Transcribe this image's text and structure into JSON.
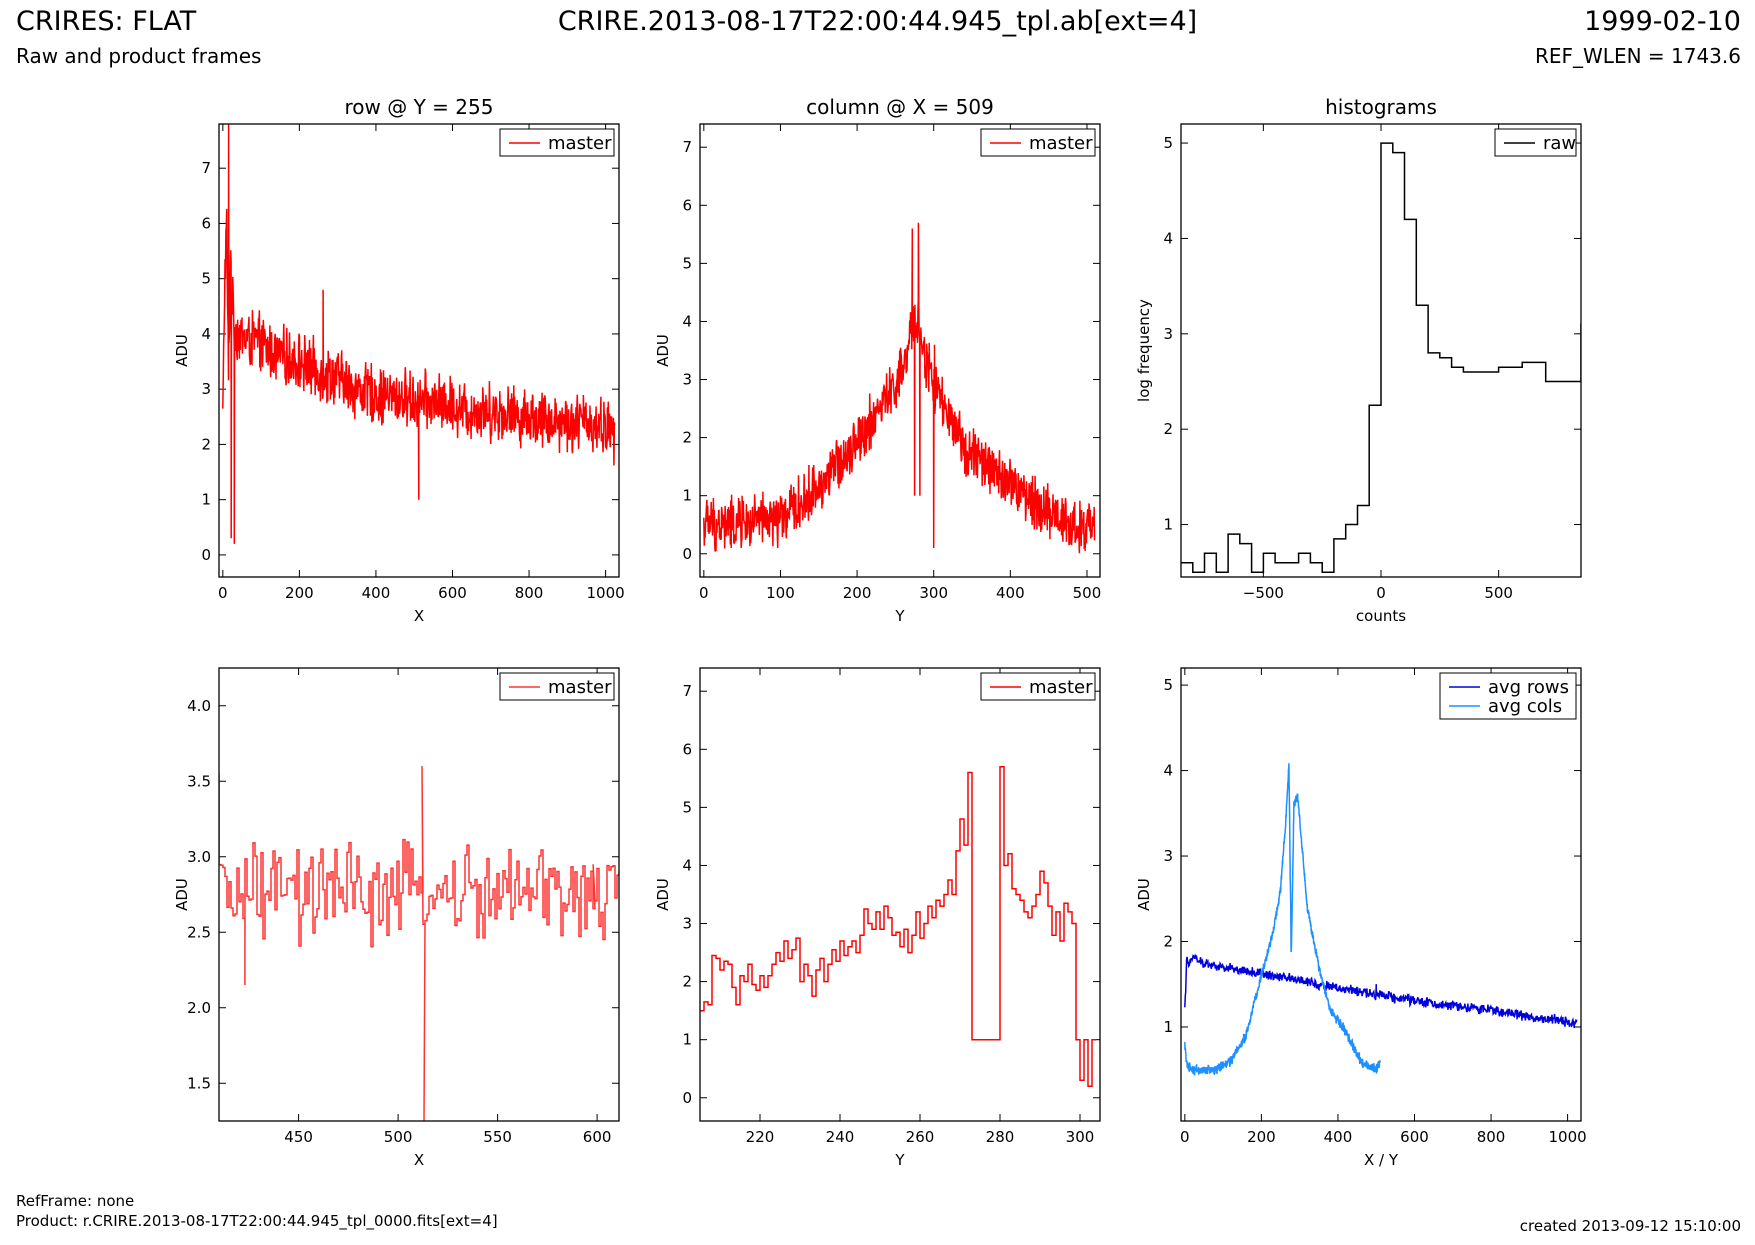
{
  "header": {
    "title": "CRIRES: FLAT",
    "subtitle": "Raw and product frames",
    "file": "CRIRE.2013-08-17T22:00:44.945_tpl.ab[ext=4]",
    "date": "1999-02-10",
    "ref_wlen": "REF_WLEN = 1743.6"
  },
  "footer": {
    "ref_frame": "RefFrame: none",
    "product": "Product: r.CRIRE.2013-08-17T22:00:44.945_tpl_0000.fits[ext=4]",
    "created": "created 2013-09-12 15:10:00"
  },
  "colors": {
    "master": "#ff0000",
    "master_zoom": "#ff3333",
    "raw": "#000000",
    "avg_rows": "#0000dd",
    "avg_cols": "#1e90ff"
  },
  "chart_data": [
    {
      "id": "row",
      "type": "line",
      "title": "row @ Y = 255",
      "xlabel": "X",
      "ylabel": "ADU",
      "xlim": [
        -10,
        1035
      ],
      "ylim": [
        -0.4,
        7.8
      ],
      "xticks": [
        0,
        200,
        400,
        600,
        800,
        1000
      ],
      "yticks": [
        0,
        1,
        2,
        3,
        4,
        5,
        6,
        7
      ],
      "legend": "top-right",
      "series": [
        {
          "name": "master",
          "style": "noisy",
          "x": [
            0,
            5,
            10,
            15,
            20,
            25,
            30,
            40,
            60,
            80,
            100,
            150,
            200,
            250,
            300,
            350,
            400,
            450,
            500,
            550,
            600,
            650,
            700,
            750,
            800,
            850,
            900,
            950,
            1000,
            1024
          ],
          "values": [
            2.5,
            5.0,
            6.0,
            3.0,
            5.5,
            4.5,
            4.2,
            4.0,
            3.9,
            3.9,
            3.8,
            3.6,
            3.5,
            3.3,
            3.2,
            3.0,
            2.9,
            2.85,
            2.8,
            2.75,
            2.7,
            2.6,
            2.6,
            2.55,
            2.5,
            2.45,
            2.4,
            2.4,
            2.3,
            2.2
          ],
          "noise": 0.45,
          "spikes": [
            [
              15,
              7.8
            ],
            [
              22,
              0.3
            ],
            [
              30,
              0.2
            ],
            [
              512,
              1.0
            ],
            [
              262,
              4.8
            ]
          ]
        }
      ]
    },
    {
      "id": "column",
      "type": "line",
      "title": "column @ X = 509",
      "xlabel": "Y",
      "ylabel": "ADU",
      "xlim": [
        -5,
        517
      ],
      "ylim": [
        -0.4,
        7.4
      ],
      "xticks": [
        0,
        100,
        200,
        300,
        400,
        500
      ],
      "yticks": [
        0,
        1,
        2,
        3,
        4,
        5,
        6,
        7
      ],
      "legend": "top-right",
      "series": [
        {
          "name": "master",
          "style": "noisy",
          "x": [
            0,
            50,
            100,
            130,
            160,
            190,
            220,
            250,
            265,
            272,
            280,
            290,
            310,
            330,
            360,
            400,
            440,
            480,
            510
          ],
          "values": [
            0.5,
            0.5,
            0.6,
            0.9,
            1.3,
            1.8,
            2.3,
            2.9,
            3.3,
            4.0,
            4.0,
            3.3,
            2.6,
            2.0,
            1.6,
            1.2,
            0.8,
            0.5,
            0.4
          ],
          "noise": 0.4,
          "spikes": [
            [
              272,
              5.6
            ],
            [
              275,
              1.0
            ],
            [
              280,
              5.7
            ],
            [
              282,
              1.0
            ],
            [
              300,
              0.1
            ],
            [
              301,
              3.6
            ],
            [
              50,
              1.0
            ],
            [
              100,
              1.0
            ],
            [
              120,
              1.0
            ]
          ]
        }
      ]
    },
    {
      "id": "hist",
      "type": "line",
      "title": "histograms",
      "xlabel": "counts",
      "ylabel": "log frequency",
      "xlim": [
        -850,
        850
      ],
      "ylim": [
        0.45,
        5.2
      ],
      "xticks": [
        -500,
        0,
        500
      ],
      "xtick_labels": [
        "−500",
        "0",
        "500"
      ],
      "yticks": [
        1,
        2,
        3,
        4,
        5
      ],
      "legend": "top-right",
      "series": [
        {
          "name": "raw",
          "style": "step",
          "x": [
            -850,
            -800,
            -750,
            -700,
            -650,
            -600,
            -550,
            -500,
            -450,
            -400,
            -350,
            -300,
            -250,
            -200,
            -150,
            -100,
            -50,
            0,
            50,
            100,
            150,
            200,
            250,
            300,
            350,
            400,
            450,
            500,
            550,
            600,
            650,
            700,
            750,
            800,
            850
          ],
          "values": [
            0.6,
            0.5,
            0.7,
            0.5,
            0.9,
            0.8,
            0.5,
            0.7,
            0.6,
            0.6,
            0.7,
            0.6,
            0.5,
            0.85,
            1.0,
            1.2,
            2.25,
            5.0,
            4.9,
            4.2,
            3.3,
            2.8,
            2.75,
            2.65,
            2.6,
            2.6,
            2.6,
            2.65,
            2.65,
            2.7,
            2.7,
            2.5,
            2.5,
            2.5,
            3.1
          ]
        }
      ]
    },
    {
      "id": "row_zoom",
      "type": "line",
      "title": "",
      "xlabel": "X",
      "ylabel": "ADU",
      "xlim": [
        410,
        611
      ],
      "ylim": [
        1.25,
        4.25
      ],
      "xticks": [
        450,
        500,
        550,
        600
      ],
      "yticks": [
        1.5,
        2.0,
        2.5,
        3.0,
        3.5,
        4.0
      ],
      "ytick_labels": [
        "1.5",
        "2.0",
        "2.5",
        "3.0",
        "3.5",
        "4.0"
      ],
      "legend": "top-right",
      "series": [
        {
          "name": "master",
          "style": "noisy-step",
          "x": [
            410,
            450,
            500,
            550,
            611
          ],
          "values": [
            2.75,
            2.75,
            2.75,
            2.75,
            2.75
          ],
          "noise": 0.28,
          "spikes": [
            [
              410,
              3.55
            ],
            [
              423,
              2.15
            ],
            [
              512,
              3.6
            ],
            [
              513,
              1.25
            ],
            [
              598,
              2.95
            ]
          ]
        }
      ]
    },
    {
      "id": "col_zoom",
      "type": "line",
      "title": "",
      "xlabel": "Y",
      "ylabel": "ADU",
      "xlim": [
        205,
        305
      ],
      "ylim": [
        -0.4,
        7.4
      ],
      "xticks": [
        220,
        240,
        260,
        280,
        300
      ],
      "yticks": [
        0,
        1,
        2,
        3,
        4,
        5,
        6,
        7
      ],
      "legend": "top-right",
      "series": [
        {
          "name": "master",
          "style": "step",
          "x": [
            205,
            206,
            207,
            208,
            209,
            210,
            211,
            212,
            213,
            214,
            215,
            216,
            217,
            218,
            219,
            220,
            221,
            222,
            223,
            224,
            225,
            226,
            227,
            228,
            229,
            230,
            231,
            232,
            233,
            234,
            235,
            236,
            237,
            238,
            239,
            240,
            241,
            242,
            243,
            244,
            245,
            246,
            247,
            248,
            249,
            250,
            251,
            252,
            253,
            254,
            255,
            256,
            257,
            258,
            259,
            260,
            261,
            262,
            263,
            264,
            265,
            266,
            267,
            268,
            269,
            270,
            271,
            272,
            273,
            274,
            275,
            276,
            277,
            278,
            279,
            280,
            281,
            282,
            283,
            284,
            285,
            286,
            287,
            288,
            289,
            290,
            291,
            292,
            293,
            294,
            295,
            296,
            297,
            298,
            299,
            300,
            301,
            302,
            303
          ],
          "values": [
            1.5,
            1.65,
            1.6,
            2.45,
            2.4,
            2.2,
            2.35,
            2.3,
            1.9,
            1.6,
            2.1,
            2.0,
            2.3,
            1.95,
            1.85,
            2.1,
            1.9,
            2.1,
            2.3,
            2.5,
            2.35,
            2.7,
            2.4,
            2.55,
            2.75,
            2.0,
            2.3,
            2.1,
            1.75,
            2.2,
            2.4,
            2.0,
            2.3,
            2.55,
            2.35,
            2.7,
            2.45,
            2.6,
            2.7,
            2.5,
            2.8,
            3.25,
            3.0,
            2.9,
            3.2,
            2.9,
            3.3,
            3.1,
            2.8,
            2.85,
            2.6,
            2.9,
            2.5,
            2.8,
            3.2,
            2.75,
            3.0,
            3.3,
            3.1,
            3.4,
            3.3,
            3.5,
            3.75,
            3.5,
            4.25,
            4.8,
            4.35,
            5.6,
            1.0,
            1.0,
            1.0,
            1.0,
            1.0,
            1.0,
            1.0,
            5.7,
            4.0,
            4.2,
            3.6,
            3.5,
            3.4,
            3.2,
            3.1,
            3.3,
            3.5,
            3.9,
            3.7,
            3.3,
            2.8,
            3.2,
            2.7,
            3.35,
            3.2,
            3.0,
            1.0,
            0.3,
            1.0,
            0.2,
            1.0
          ]
        }
      ]
    },
    {
      "id": "avg",
      "type": "line",
      "title": "",
      "xlabel": "X / Y",
      "ylabel": "ADU",
      "xlim": [
        -10,
        1035
      ],
      "ylim": [
        -0.1,
        5.2
      ],
      "xticks": [
        0,
        200,
        400,
        600,
        800,
        1000
      ],
      "yticks": [
        1,
        2,
        3,
        4,
        5
      ],
      "legend": "top-right",
      "series": [
        {
          "name": "avg rows",
          "style": "noisy",
          "x": [
            0,
            5,
            10,
            20,
            40,
            100,
            200,
            300,
            400,
            500,
            600,
            700,
            800,
            900,
            1024
          ],
          "values": [
            1.2,
            1.8,
            1.7,
            1.85,
            1.75,
            1.7,
            1.62,
            1.55,
            1.45,
            1.38,
            1.3,
            1.25,
            1.2,
            1.12,
            1.05
          ],
          "noise": 0.05,
          "spikes": [
            [
              500,
              1.5
            ]
          ]
        },
        {
          "name": "avg cols",
          "style": "noisy",
          "x": [
            0,
            5,
            20,
            80,
            120,
            160,
            200,
            230,
            250,
            265,
            272,
            278,
            285,
            295,
            320,
            350,
            380,
            420,
            460,
            500,
            511
          ],
          "values": [
            0.8,
            0.55,
            0.5,
            0.5,
            0.6,
            0.9,
            1.6,
            2.1,
            2.6,
            3.5,
            4.1,
            1.8,
            3.6,
            3.7,
            2.4,
            1.7,
            1.2,
            0.95,
            0.6,
            0.5,
            0.6
          ],
          "noise": 0.05,
          "spikes": []
        }
      ]
    }
  ]
}
